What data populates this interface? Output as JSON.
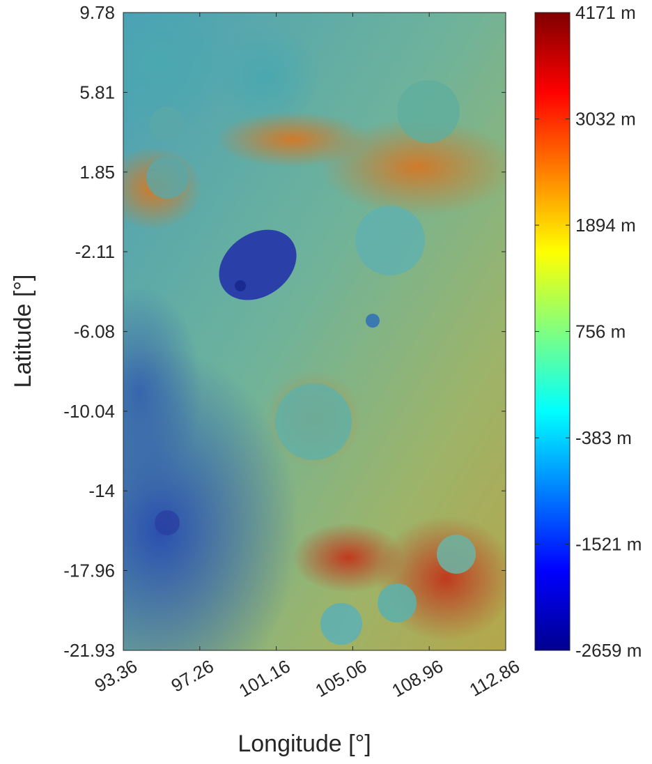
{
  "chart_data": {
    "type": "heatmap",
    "xlabel": "Longitude [°]",
    "ylabel": "Latitude [°]",
    "xlim": [
      93.36,
      112.86
    ],
    "xticks": [
      93.36,
      97.26,
      101.16,
      105.06,
      108.96,
      112.86
    ],
    "ylim": [
      -21.93,
      9.78
    ],
    "yticks": [
      9.78,
      5.81,
      1.85,
      -2.11,
      -6.08,
      -10.04,
      -14,
      -17.96,
      -21.93
    ],
    "colormap": "jet",
    "colorbar": {
      "clim": [
        -2659,
        4171
      ],
      "ticks": [
        {
          "value": 4171,
          "label": "4171 m"
        },
        {
          "value": 3032,
          "label": "3032 m"
        },
        {
          "value": 1894,
          "label": "1894 m"
        },
        {
          "value": 756,
          "label": "756 m"
        },
        {
          "value": -383,
          "label": "-383 m"
        },
        {
          "value": -1521,
          "label": "-1521 m"
        },
        {
          "value": -2659,
          "label": "-2659 m"
        }
      ]
    }
  }
}
